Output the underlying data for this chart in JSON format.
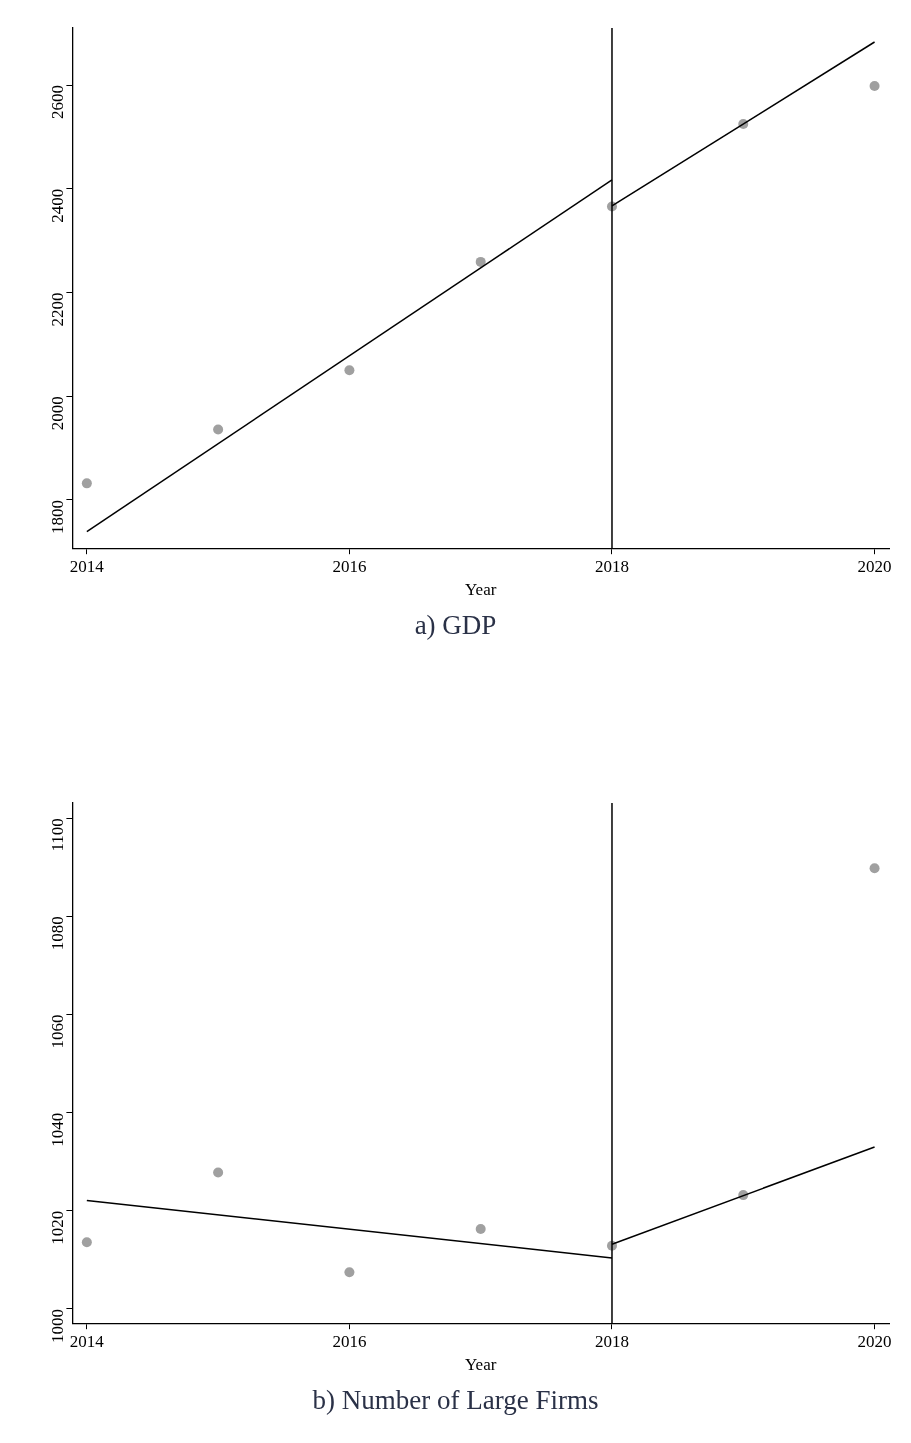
{
  "chart_data": [
    {
      "type": "scatter",
      "title": "a) GDP",
      "xlabel": "Year",
      "xlim": [
        2013.89,
        2020.11
      ],
      "xticks": [
        2014,
        2016,
        2018,
        2020
      ],
      "ylim": [
        1707,
        2710
      ],
      "yticks": [
        1800,
        2000,
        2200,
        2400,
        2600
      ],
      "grid": false,
      "legend": false,
      "series": [
        {
          "type": "scatter",
          "color": "#a0a0a0",
          "marker": "circle",
          "x": [
            2014,
            2015,
            2016,
            2017,
            2018,
            2019,
            2020
          ],
          "values": [
            1832,
            1936,
            2050,
            2259,
            2366,
            2525,
            2598
          ]
        },
        {
          "type": "line",
          "color": "#000000",
          "marker": "none",
          "x": [
            2014,
            2018
          ],
          "values": [
            1739,
            2417
          ]
        },
        {
          "type": "line",
          "color": "#000000",
          "marker": "none",
          "x": [
            2018,
            2020
          ],
          "values": [
            2367,
            2683
          ]
        }
      ],
      "ref_lines": [
        {
          "axis": "x",
          "value": 2018,
          "color": "#000000"
        }
      ]
    },
    {
      "type": "scatter",
      "title": "b) Number of Large Firms",
      "xlabel": "Year",
      "xlim": [
        2013.89,
        2020.11
      ],
      "xticks": [
        2014,
        2016,
        2018,
        2020
      ],
      "ylim": [
        997.1,
        1103.1
      ],
      "yticks": [
        1000,
        1020,
        1040,
        1060,
        1080,
        1100
      ],
      "grid": false,
      "legend": false,
      "series": [
        {
          "type": "scatter",
          "color": "#a0a0a0",
          "marker": "circle",
          "x": [
            2014,
            2015,
            2016,
            2017,
            2018,
            2019,
            2020
          ],
          "values": [
            1013.6,
            1027.8,
            1007.5,
            1016.3,
            1012.9,
            1023.2,
            1089.8
          ]
        },
        {
          "type": "line",
          "color": "#000000",
          "marker": "none",
          "x": [
            2014,
            2018
          ],
          "values": [
            1022.1,
            1010.4
          ]
        },
        {
          "type": "line",
          "color": "#000000",
          "marker": "none",
          "x": [
            2018,
            2020
          ],
          "values": [
            1013.2,
            1033.0
          ]
        }
      ],
      "ref_lines": [
        {
          "axis": "x",
          "value": 2018,
          "color": "#000000"
        }
      ]
    }
  ]
}
